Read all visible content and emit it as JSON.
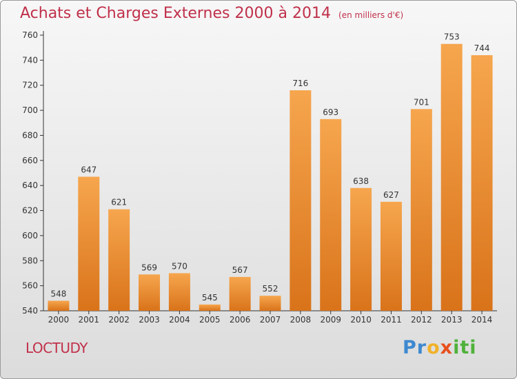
{
  "title": "Achats et Charges Externes 2000 à 2014",
  "unit_note": "(en milliers d'€)",
  "commune": "LOCTUDY",
  "logo_text": "Proxiti",
  "colors": {
    "title": "#c0304a",
    "bar_light": "#f6a64e",
    "bar_dark": "#d9731a",
    "axis": "#333333"
  },
  "chart_data": {
    "type": "bar",
    "categories": [
      "2000",
      "2001",
      "2002",
      "2003",
      "2004",
      "2005",
      "2006",
      "2007",
      "2008",
      "2009",
      "2010",
      "2011",
      "2012",
      "2013",
      "2014"
    ],
    "values": [
      548,
      647,
      621,
      569,
      570,
      545,
      567,
      552,
      716,
      693,
      638,
      627,
      701,
      753,
      744
    ],
    "ylim": [
      540,
      760
    ],
    "yticks": [
      540,
      560,
      580,
      600,
      620,
      640,
      660,
      680,
      700,
      720,
      740,
      760
    ],
    "grid": false,
    "legend": "none"
  }
}
